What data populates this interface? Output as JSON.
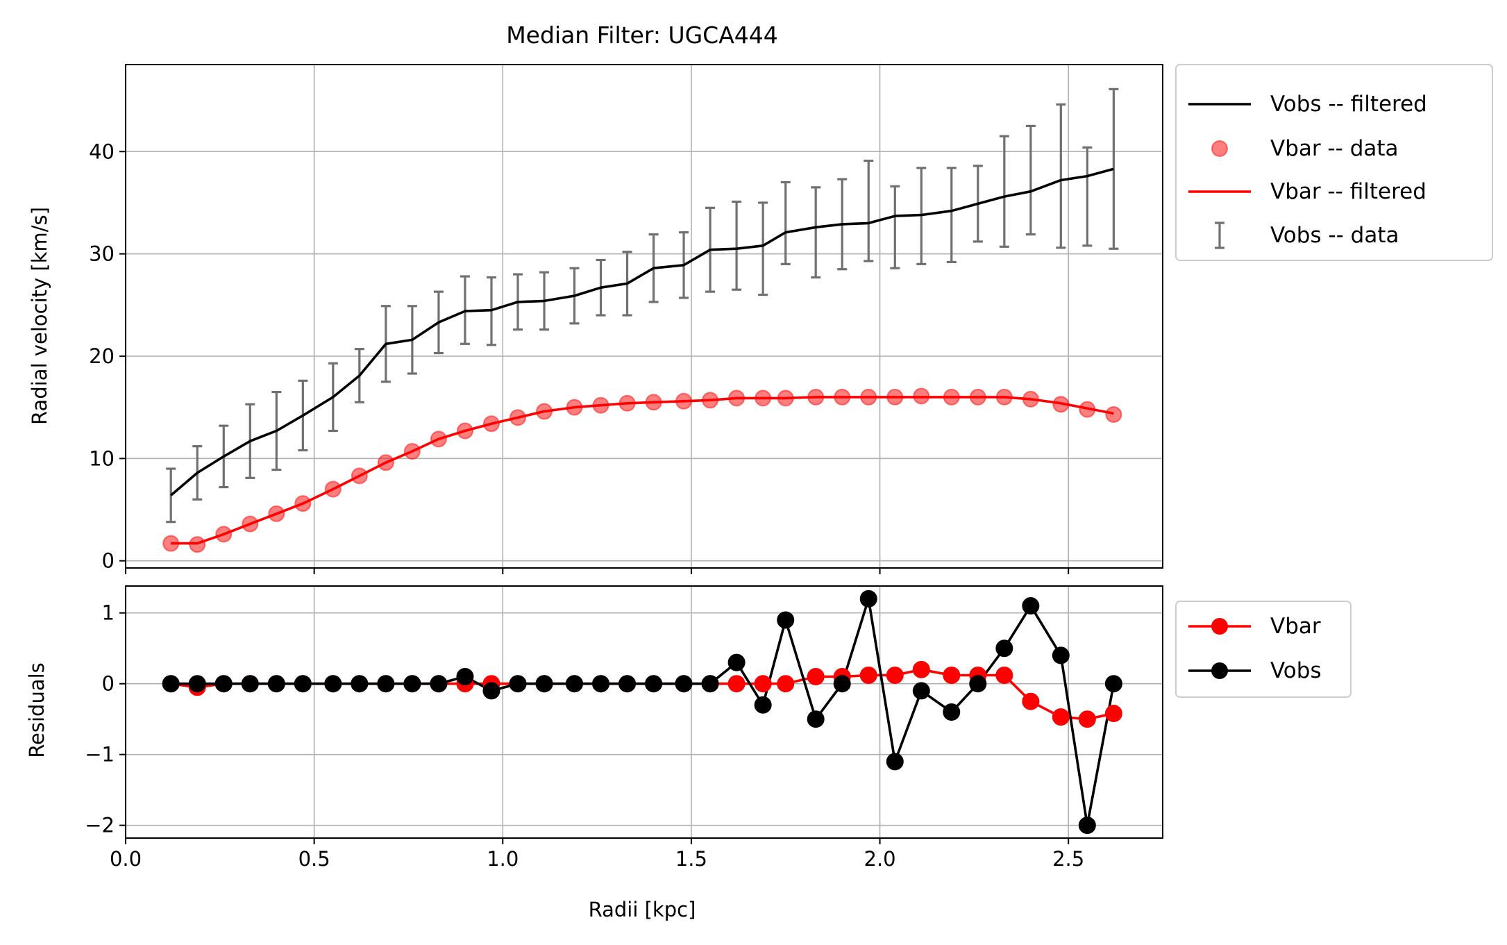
{
  "chart_data": [
    {
      "type": "line",
      "title": "Median Filter: UGCA444",
      "ylabel": "Radial velocity [km/s]",
      "xlabel": "",
      "xlim": [
        0.0,
        2.75
      ],
      "ylim": [
        -0.7,
        48.5
      ],
      "xticks": [
        0.0,
        0.5,
        1.0,
        1.5,
        2.0,
        2.5
      ],
      "yticks": [
        0,
        10,
        20,
        30,
        40
      ],
      "ytick_labels": [
        "0",
        "10",
        "20",
        "30",
        "40"
      ],
      "grid": true,
      "legend": {
        "placement": "outside-right-top",
        "entries": [
          "Vobs -- filtered",
          "Vbar -- data",
          "Vbar -- filtered",
          "Vobs -- data"
        ]
      },
      "x": [
        0.12,
        0.19,
        0.26,
        0.33,
        0.4,
        0.47,
        0.55,
        0.62,
        0.69,
        0.76,
        0.83,
        0.9,
        0.97,
        1.04,
        1.11,
        1.19,
        1.26,
        1.33,
        1.4,
        1.48,
        1.55,
        1.62,
        1.69,
        1.75,
        1.83,
        1.9,
        1.97,
        2.04,
        2.11,
        2.19,
        2.26,
        2.33,
        2.4,
        2.48,
        2.55,
        2.62
      ],
      "series": [
        {
          "name": "Vobs -- filtered",
          "kind": "line",
          "color": "#000000",
          "values": [
            6.4,
            8.6,
            10.2,
            11.7,
            12.7,
            14.2,
            16.0,
            18.1,
            21.2,
            21.6,
            23.3,
            24.4,
            24.5,
            25.3,
            25.4,
            25.9,
            26.7,
            27.1,
            28.6,
            28.9,
            30.4,
            30.5,
            30.8,
            32.1,
            32.6,
            32.9,
            33.0,
            33.7,
            33.8,
            34.2,
            34.9,
            35.6,
            36.1,
            37.2,
            37.6,
            38.3
          ]
        },
        {
          "name": "Vbar -- data",
          "kind": "scatter",
          "color": "#ff0000",
          "values": [
            1.7,
            1.6,
            2.6,
            3.6,
            4.6,
            5.6,
            7.0,
            8.3,
            9.6,
            10.7,
            11.9,
            12.7,
            13.4,
            14.0,
            14.6,
            15.0,
            15.2,
            15.4,
            15.5,
            15.6,
            15.7,
            15.9,
            15.9,
            15.9,
            16.0,
            16.0,
            16.0,
            16.0,
            16.1,
            16.0,
            16.0,
            16.0,
            15.8,
            15.3,
            14.8,
            14.3
          ]
        },
        {
          "name": "Vbar -- filtered",
          "kind": "line",
          "color": "#ff0000",
          "values": [
            1.7,
            1.7,
            2.6,
            3.6,
            4.6,
            5.6,
            7.0,
            8.3,
            9.6,
            10.7,
            11.9,
            12.7,
            13.4,
            14.0,
            14.6,
            15.0,
            15.2,
            15.4,
            15.5,
            15.6,
            15.7,
            15.9,
            15.9,
            15.9,
            16.0,
            16.0,
            16.0,
            16.0,
            16.0,
            16.0,
            16.0,
            16.0,
            15.8,
            15.4,
            14.9,
            14.4
          ]
        },
        {
          "name": "Vobs -- data",
          "kind": "errorbar",
          "color": "#707070",
          "values": [
            6.4,
            8.6,
            10.2,
            11.7,
            12.7,
            14.2,
            16.0,
            18.1,
            21.2,
            21.6,
            23.3,
            24.5,
            24.4,
            25.3,
            25.4,
            25.9,
            26.7,
            27.1,
            28.6,
            28.9,
            30.4,
            30.8,
            30.5,
            33.0,
            32.1,
            32.9,
            34.2,
            32.6,
            33.7,
            33.8,
            34.9,
            36.1,
            37.2,
            37.6,
            35.6,
            38.3
          ],
          "errors": [
            2.6,
            2.6,
            3.0,
            3.6,
            3.8,
            3.4,
            3.3,
            2.6,
            3.7,
            3.3,
            3.0,
            3.3,
            3.3,
            2.7,
            2.8,
            2.7,
            2.7,
            3.1,
            3.3,
            3.2,
            4.1,
            4.3,
            4.5,
            4.0,
            4.4,
            4.4,
            4.9,
            4.0,
            4.7,
            4.6,
            3.7,
            5.4,
            5.3,
            7.0,
            4.8,
            7.8
          ]
        }
      ]
    },
    {
      "type": "line",
      "title": "",
      "xlabel": "Radii [kpc]",
      "ylabel": "Residuals",
      "xlim": [
        0.0,
        2.75
      ],
      "ylim": [
        -2.18,
        1.38
      ],
      "xticks": [
        0.0,
        0.5,
        1.0,
        1.5,
        2.0,
        2.5
      ],
      "xtick_labels": [
        "0.0",
        "0.5",
        "1.0",
        "1.5",
        "2.0",
        "2.5"
      ],
      "yticks": [
        -2,
        -1,
        0,
        1
      ],
      "ytick_labels": [
        "−2",
        "−1",
        "0",
        "1"
      ],
      "grid": true,
      "legend": {
        "placement": "outside-right-top",
        "entries": [
          "Vbar",
          "Vobs"
        ]
      },
      "x": [
        0.12,
        0.19,
        0.26,
        0.33,
        0.4,
        0.47,
        0.55,
        0.62,
        0.69,
        0.76,
        0.83,
        0.9,
        0.97,
        1.04,
        1.11,
        1.19,
        1.26,
        1.33,
        1.4,
        1.48,
        1.55,
        1.62,
        1.69,
        1.75,
        1.83,
        1.9,
        1.97,
        2.04,
        2.11,
        2.19,
        2.26,
        2.33,
        2.4,
        2.48,
        2.55,
        2.62
      ],
      "series": [
        {
          "name": "Vbar",
          "color": "#ff0000",
          "values": [
            0,
            -0.05,
            0,
            0,
            0,
            0,
            0,
            0,
            0,
            0,
            0,
            0,
            0,
            0,
            0,
            0,
            0,
            0,
            0,
            0,
            0,
            0,
            0,
            0,
            0.1,
            0.1,
            0.12,
            0.12,
            0.2,
            0.12,
            0.12,
            0.12,
            -0.25,
            -0.47,
            -0.5,
            -0.42
          ]
        },
        {
          "name": "Vobs",
          "color": "#000000",
          "values": [
            0,
            0,
            0,
            0,
            0,
            0,
            0,
            0,
            0,
            0,
            0,
            0.1,
            -0.1,
            0,
            0,
            0,
            0,
            0,
            0,
            0,
            0,
            0.3,
            -0.3,
            0.9,
            -0.5,
            0,
            1.2,
            -1.1,
            -0.1,
            -0.4,
            0,
            0.5,
            1.1,
            0.4,
            -2.0,
            0
          ]
        }
      ]
    }
  ]
}
